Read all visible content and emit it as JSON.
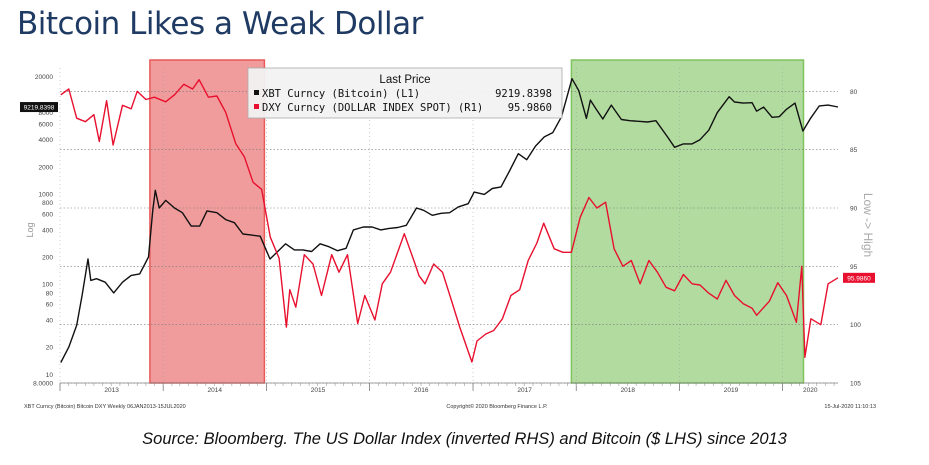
{
  "headline": "Bitcoin Likes a Weak Dollar",
  "caption": "Source: Bloomberg. The US Dollar Index (inverted RHS) and Bitcoin ($ LHS) since 2013",
  "chart_data": {
    "type": "line",
    "title": "Last Price",
    "ylabel_left": "Log",
    "ylabel_right": "Low -> High",
    "left_axis": {
      "scale": "log",
      "ylim": [
        8,
        25000
      ],
      "ticks": [
        "20000",
        "10000",
        "8000",
        "6000",
        "4000",
        "2000",
        "1000",
        "800",
        "600",
        "400",
        "200",
        "100",
        "80",
        "60",
        "40",
        "20",
        "10",
        "8.0000"
      ]
    },
    "right_axis": {
      "inverted": true,
      "ylim": [
        105,
        78
      ],
      "ticks": [
        "80",
        "85",
        "90",
        "95",
        "100",
        "105"
      ]
    },
    "x_ticks": [
      "2013",
      "2014",
      "2015",
      "2016",
      "2017",
      "2018",
      "2019",
      "2020"
    ],
    "x_range": [
      "2013-01-01",
      "2020-07-15"
    ],
    "shaded_regions": [
      {
        "start": "2013-11-15",
        "end": "2014-12-25",
        "color": "#e85a5a"
      },
      {
        "start": "2017-12-15",
        "end": "2020-03-15",
        "color": "#7fc35f"
      }
    ],
    "series": [
      {
        "name": "XBT Curncy (Bitcoin)  (L1)",
        "last_value": "9219.8398",
        "axis": "left",
        "color": "#111111",
        "points": [
          [
            "2013-01-04",
            13.5
          ],
          [
            "2013-02-01",
            20
          ],
          [
            "2013-03-01",
            35
          ],
          [
            "2013-03-20",
            75
          ],
          [
            "2013-04-10",
            190
          ],
          [
            "2013-04-20",
            110
          ],
          [
            "2013-05-10",
            115
          ],
          [
            "2013-06-10",
            105
          ],
          [
            "2013-07-10",
            80
          ],
          [
            "2013-08-10",
            105
          ],
          [
            "2013-09-10",
            125
          ],
          [
            "2013-10-10",
            130
          ],
          [
            "2013-11-10",
            200
          ],
          [
            "2013-11-25",
            650
          ],
          [
            "2013-12-04",
            1100
          ],
          [
            "2013-12-18",
            700
          ],
          [
            "2014-01-10",
            850
          ],
          [
            "2014-02-10",
            700
          ],
          [
            "2014-03-10",
            620
          ],
          [
            "2014-04-10",
            440
          ],
          [
            "2014-05-10",
            440
          ],
          [
            "2014-06-05",
            650
          ],
          [
            "2014-07-10",
            620
          ],
          [
            "2014-08-10",
            520
          ],
          [
            "2014-09-10",
            480
          ],
          [
            "2014-10-10",
            360
          ],
          [
            "2014-11-10",
            350
          ],
          [
            "2014-12-10",
            340
          ],
          [
            "2015-01-14",
            190
          ],
          [
            "2015-02-10",
            230
          ],
          [
            "2015-03-10",
            280
          ],
          [
            "2015-04-10",
            240
          ],
          [
            "2015-05-10",
            240
          ],
          [
            "2015-06-10",
            230
          ],
          [
            "2015-07-10",
            280
          ],
          [
            "2015-08-10",
            260
          ],
          [
            "2015-09-10",
            235
          ],
          [
            "2015-10-10",
            250
          ],
          [
            "2015-11-05",
            400
          ],
          [
            "2015-12-10",
            430
          ],
          [
            "2016-01-10",
            430
          ],
          [
            "2016-02-10",
            400
          ],
          [
            "2016-03-10",
            415
          ],
          [
            "2016-04-10",
            425
          ],
          [
            "2016-05-10",
            450
          ],
          [
            "2016-06-15",
            700
          ],
          [
            "2016-07-10",
            660
          ],
          [
            "2016-08-10",
            580
          ],
          [
            "2016-09-10",
            610
          ],
          [
            "2016-10-10",
            620
          ],
          [
            "2016-11-10",
            720
          ],
          [
            "2016-12-15",
            780
          ],
          [
            "2017-01-05",
            1050
          ],
          [
            "2017-02-10",
            990
          ],
          [
            "2017-03-10",
            1150
          ],
          [
            "2017-04-10",
            1200
          ],
          [
            "2017-05-10",
            1800
          ],
          [
            "2017-06-10",
            2800
          ],
          [
            "2017-07-10",
            2400
          ],
          [
            "2017-08-10",
            3400
          ],
          [
            "2017-09-10",
            4300
          ],
          [
            "2017-10-10",
            4800
          ],
          [
            "2017-11-10",
            7200
          ],
          [
            "2017-12-17",
            19000
          ],
          [
            "2018-01-10",
            14000
          ],
          [
            "2018-02-06",
            6900
          ],
          [
            "2018-02-20",
            11000
          ],
          [
            "2018-03-10",
            9000
          ],
          [
            "2018-04-05",
            6800
          ],
          [
            "2018-05-05",
            9700
          ],
          [
            "2018-06-10",
            6700
          ],
          [
            "2018-07-10",
            6500
          ],
          [
            "2018-08-10",
            6400
          ],
          [
            "2018-09-10",
            6300
          ],
          [
            "2018-10-10",
            6500
          ],
          [
            "2018-11-20",
            4300
          ],
          [
            "2018-12-15",
            3300
          ],
          [
            "2019-01-15",
            3600
          ],
          [
            "2019-02-15",
            3600
          ],
          [
            "2019-03-15",
            4000
          ],
          [
            "2019-04-15",
            5100
          ],
          [
            "2019-05-15",
            8000
          ],
          [
            "2019-06-26",
            12000
          ],
          [
            "2019-07-15",
            10500
          ],
          [
            "2019-08-15",
            10200
          ],
          [
            "2019-09-15",
            10300
          ],
          [
            "2019-10-01",
            8300
          ],
          [
            "2019-10-26",
            9200
          ],
          [
            "2019-11-25",
            7100
          ],
          [
            "2019-12-20",
            7200
          ],
          [
            "2020-01-15",
            8700
          ],
          [
            "2020-02-14",
            10200
          ],
          [
            "2020-03-13",
            5000
          ],
          [
            "2020-04-10",
            7000
          ],
          [
            "2020-05-10",
            9500
          ],
          [
            "2020-06-10",
            9700
          ],
          [
            "2020-07-15",
            9219.8398
          ]
        ]
      },
      {
        "name": "DXY Curncy (DOLLAR INDEX SPOT)  (R1)",
        "last_value": "95.9860",
        "axis": "right",
        "color": "#e8102e",
        "points": [
          [
            "2013-01-04",
            80.3
          ],
          [
            "2013-02-01",
            79.8
          ],
          [
            "2013-03-01",
            82.3
          ],
          [
            "2013-04-01",
            82.6
          ],
          [
            "2013-05-01",
            82.0
          ],
          [
            "2013-05-20",
            84.3
          ],
          [
            "2013-06-15",
            80.8
          ],
          [
            "2013-07-08",
            84.6
          ],
          [
            "2013-08-10",
            81.2
          ],
          [
            "2013-09-10",
            81.5
          ],
          [
            "2013-10-01",
            80.0
          ],
          [
            "2013-11-01",
            80.7
          ],
          [
            "2013-12-01",
            80.5
          ],
          [
            "2014-01-10",
            80.9
          ],
          [
            "2014-02-10",
            80.3
          ],
          [
            "2014-03-15",
            79.4
          ],
          [
            "2014-04-15",
            79.8
          ],
          [
            "2014-05-08",
            79.0
          ],
          [
            "2014-06-10",
            80.5
          ],
          [
            "2014-07-10",
            80.4
          ],
          [
            "2014-08-10",
            81.8
          ],
          [
            "2014-09-15",
            84.5
          ],
          [
            "2014-10-15",
            85.6
          ],
          [
            "2014-11-15",
            87.8
          ],
          [
            "2014-12-15",
            88.4
          ],
          [
            "2015-01-15",
            92.5
          ],
          [
            "2015-02-15",
            94.3
          ],
          [
            "2015-03-13",
            100.2
          ],
          [
            "2015-03-25",
            97.0
          ],
          [
            "2015-04-15",
            98.5
          ],
          [
            "2015-05-15",
            94.0
          ],
          [
            "2015-06-15",
            94.8
          ],
          [
            "2015-07-15",
            97.5
          ],
          [
            "2015-08-20",
            94.0
          ],
          [
            "2015-09-15",
            95.5
          ],
          [
            "2015-10-15",
            94.0
          ],
          [
            "2015-11-20",
            99.9
          ],
          [
            "2015-12-15",
            97.5
          ],
          [
            "2016-01-20",
            99.6
          ],
          [
            "2016-02-15",
            96.5
          ],
          [
            "2016-03-15",
            95.5
          ],
          [
            "2016-05-03",
            92.2
          ],
          [
            "2016-06-10",
            94.8
          ],
          [
            "2016-06-24",
            95.8
          ],
          [
            "2016-07-15",
            96.5
          ],
          [
            "2016-08-15",
            94.8
          ],
          [
            "2016-09-15",
            95.5
          ],
          [
            "2016-10-15",
            97.8
          ],
          [
            "2016-11-15",
            100.2
          ],
          [
            "2016-12-28",
            103.2
          ],
          [
            "2017-01-15",
            101.4
          ],
          [
            "2017-02-15",
            100.8
          ],
          [
            "2017-03-15",
            100.5
          ],
          [
            "2017-04-15",
            99.5
          ],
          [
            "2017-05-15",
            97.5
          ],
          [
            "2017-06-15",
            97.0
          ],
          [
            "2017-07-15",
            94.5
          ],
          [
            "2017-08-15",
            93.0
          ],
          [
            "2017-09-08",
            91.3
          ],
          [
            "2017-10-15",
            93.5
          ],
          [
            "2017-11-15",
            93.8
          ],
          [
            "2017-12-15",
            93.8
          ],
          [
            "2018-01-15",
            90.8
          ],
          [
            "2018-02-15",
            89.1
          ],
          [
            "2018-03-15",
            90.0
          ],
          [
            "2018-04-15",
            89.5
          ],
          [
            "2018-05-15",
            93.5
          ],
          [
            "2018-06-15",
            95.0
          ],
          [
            "2018-07-15",
            94.5
          ],
          [
            "2018-08-15",
            96.5
          ],
          [
            "2018-09-15",
            94.5
          ],
          [
            "2018-10-15",
            95.5
          ],
          [
            "2018-11-15",
            96.8
          ],
          [
            "2018-12-15",
            97.1
          ],
          [
            "2019-01-15",
            95.7
          ],
          [
            "2019-02-15",
            96.5
          ],
          [
            "2019-03-15",
            96.6
          ],
          [
            "2019-04-15",
            97.3
          ],
          [
            "2019-05-15",
            97.8
          ],
          [
            "2019-06-15",
            96.2
          ],
          [
            "2019-07-15",
            97.5
          ],
          [
            "2019-08-15",
            98.2
          ],
          [
            "2019-09-15",
            98.6
          ],
          [
            "2019-10-01",
            99.2
          ],
          [
            "2019-11-15",
            98.0
          ],
          [
            "2019-12-15",
            96.4
          ],
          [
            "2020-01-15",
            97.5
          ],
          [
            "2020-02-19",
            99.8
          ],
          [
            "2020-03-09",
            95.0
          ],
          [
            "2020-03-20",
            102.8
          ],
          [
            "2020-04-10",
            99.5
          ],
          [
            "2020-05-15",
            100.0
          ],
          [
            "2020-06-10",
            96.5
          ],
          [
            "2020-07-15",
            95.986
          ]
        ]
      }
    ],
    "left_marker": "9219.8398",
    "right_marker": "95.9860",
    "footer_left": "XBT Curncy (Bitcoin) Bitcoin DXY  Weekly 06JAN2013-15JUL2020",
    "footer_center": "Copyright© 2020 Bloomberg Finance L.P.",
    "footer_right": "15-Jul-2020 11:10:13"
  }
}
